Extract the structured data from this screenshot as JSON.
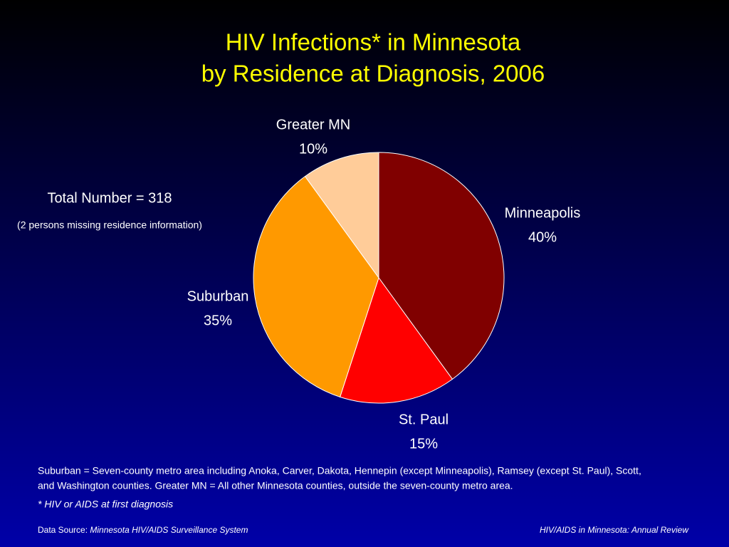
{
  "chart_data": {
    "type": "pie",
    "title": [
      "HIV Infections* in Minnesota",
      "by Residence at Diagnosis, 2006"
    ],
    "categories": [
      "Minneapolis",
      "St. Paul",
      "Suburban",
      "Greater MN"
    ],
    "values": [
      40,
      15,
      35,
      10
    ],
    "value_labels": [
      "40%",
      "15%",
      "35%",
      "10%"
    ],
    "colors": [
      "#800000",
      "#ff0000",
      "#ff9900",
      "#ffcc99"
    ],
    "annotations": {
      "total": "Total Number = 318",
      "missing": "(2 persons missing residence information)",
      "definition": [
        "Suburban = Seven-county metro area including Anoka, Carver, Dakota, Hennepin (except Minneapolis), Ramsey (except St. Paul), Scott,",
        "and Washington counties.  Greater MN = All other Minnesota counties, outside the seven-county metro area."
      ],
      "footnote": "* HIV or AIDS at first diagnosis",
      "source_label": "Data Source: ",
      "source": "Minnesota HIV/AIDS Surveillance System",
      "publication": "HIV/AIDS in Minnesota: Annual Review"
    }
  }
}
